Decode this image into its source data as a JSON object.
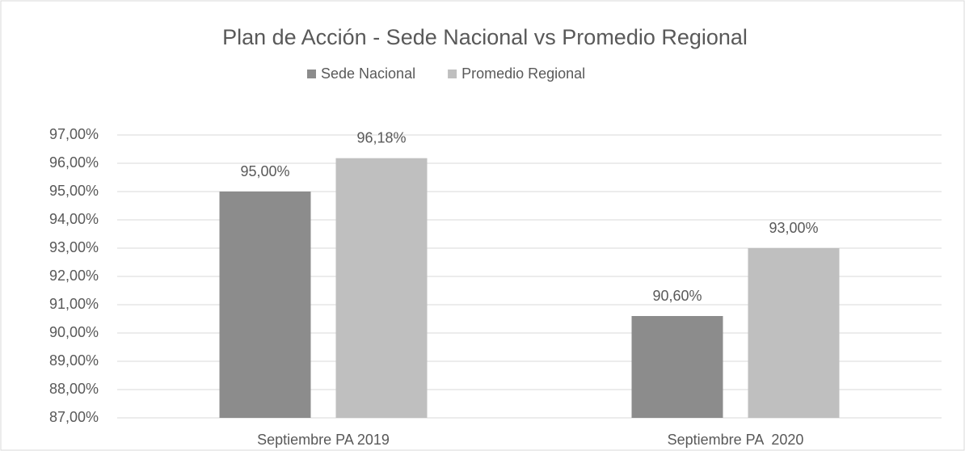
{
  "chart_data": {
    "type": "bar",
    "title": "Plan de Acción - Sede Nacional vs Promedio Regional",
    "categories": [
      "Septiembre PA 2019",
      "Septiembre PA  2020"
    ],
    "series": [
      {
        "name": "Sede Nacional",
        "color": "#8c8c8c",
        "values": [
          95,
          90.6
        ],
        "value_labels": [
          "95,00%",
          "90,60%"
        ]
      },
      {
        "name": "Promedio Regional",
        "color": "#bfbfbf",
        "values": [
          96.18,
          93
        ],
        "value_labels": [
          "96,18%",
          "93,00%"
        ]
      }
    ],
    "ylim": [
      87,
      97
    ],
    "yticks": [
      {
        "value": 87,
        "label": "87,00%"
      },
      {
        "value": 88,
        "label": "88,00%"
      },
      {
        "value": 89,
        "label": "89,00%"
      },
      {
        "value": 90,
        "label": "90,00%"
      },
      {
        "value": 91,
        "label": "91,00%"
      },
      {
        "value": 92,
        "label": "92,00%"
      },
      {
        "value": 93,
        "label": "93,00%"
      },
      {
        "value": 94,
        "label": "94,00%"
      },
      {
        "value": 95,
        "label": "95,00%"
      },
      {
        "value": 96,
        "label": "96,00%"
      },
      {
        "value": 97,
        "label": "97,00%"
      }
    ],
    "grid": true,
    "legend": "top"
  }
}
